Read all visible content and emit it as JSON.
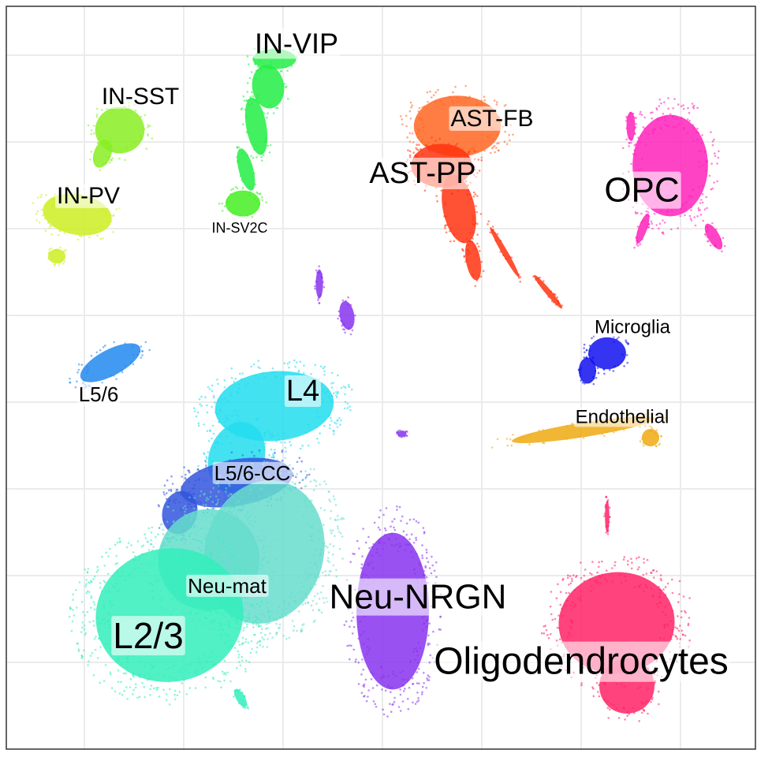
{
  "chart_data": {
    "type": "scatter",
    "title": "",
    "xlabel": "",
    "ylabel": "",
    "grid": true,
    "legend": "none",
    "clusters": [
      {
        "name": "IN-VIP",
        "color": "#22ee44"
      },
      {
        "name": "IN-SST",
        "color": "#88ee22"
      },
      {
        "name": "IN-PV",
        "color": "#ccee22"
      },
      {
        "name": "IN-SV2C",
        "color": "#44ee22"
      },
      {
        "name": "AST-FB",
        "color": "#ff6622"
      },
      {
        "name": "AST-PP",
        "color": "#ff3311"
      },
      {
        "name": "OPC",
        "color": "#ff22bb"
      },
      {
        "name": "Microglia",
        "color": "#1111ee"
      },
      {
        "name": "Endothelial",
        "color": "#eeaa11"
      },
      {
        "name": "L5/6",
        "color": "#2288ee"
      },
      {
        "name": "L4",
        "color": "#22ddee"
      },
      {
        "name": "L5/6-CC",
        "color": "#3355dd"
      },
      {
        "name": "Neu-mat",
        "color": "#66ddcc"
      },
      {
        "name": "L2/3",
        "color": "#33eebb"
      },
      {
        "name": "Neu-NRGN",
        "color": "#8833ee"
      },
      {
        "name": "Oligodendrocytes",
        "color": "#ff2266"
      }
    ]
  }
}
